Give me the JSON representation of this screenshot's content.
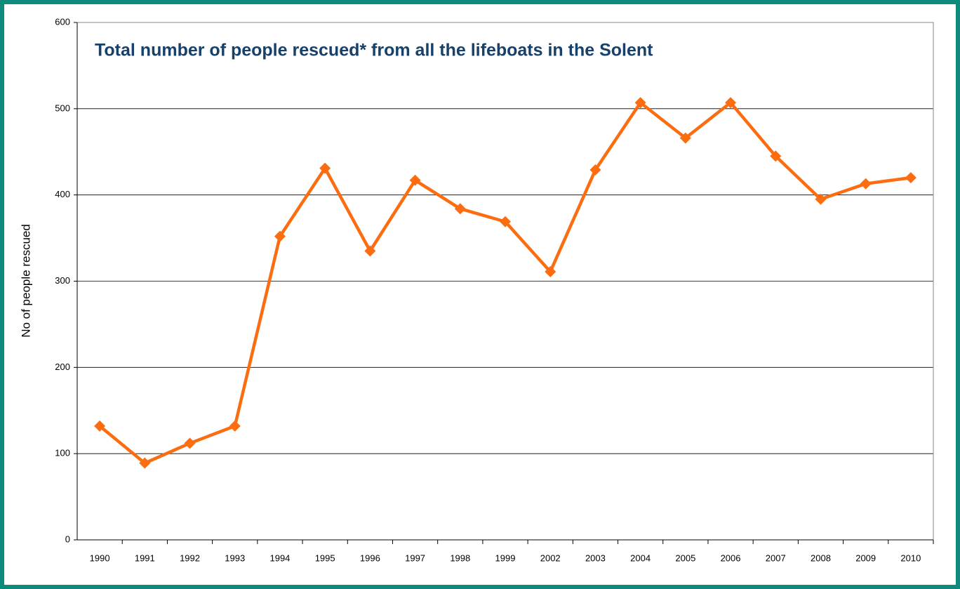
{
  "chart_data": {
    "type": "line",
    "title": "Total number of people rescued* from all the lifeboats in the Solent",
    "y_label": "No of people rescued",
    "categories": [
      "1990",
      "1991",
      "1992",
      "1993",
      "1994",
      "1995",
      "1996",
      "1997",
      "1998",
      "1999",
      "2002",
      "2003",
      "2004",
      "2005",
      "2006",
      "2007",
      "2008",
      "2009",
      "2010"
    ],
    "series": [
      {
        "name": "People rescued",
        "color": "#fb6d10",
        "values": [
          132,
          89,
          112,
          132,
          352,
          431,
          335,
          417,
          384,
          369,
          311,
          429,
          507,
          466,
          507,
          445,
          395,
          413,
          420
        ]
      }
    ],
    "ylim": [
      0,
      600
    ],
    "yticks": [
      0,
      100,
      200,
      300,
      400,
      500,
      600
    ],
    "grid": true
  }
}
